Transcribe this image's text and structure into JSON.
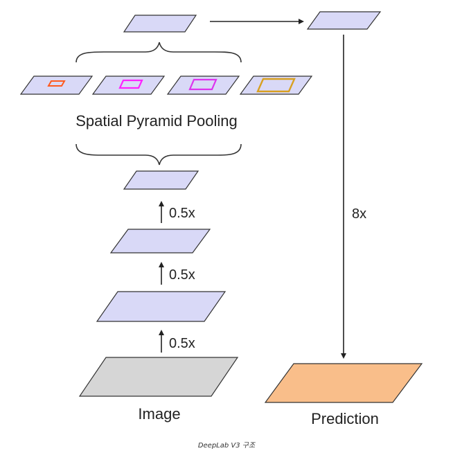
{
  "labels": {
    "spp": "Spatial Pyramid Pooling",
    "image": "Image",
    "prediction": "Prediction",
    "scale_1": "0.5x",
    "scale_2": "0.5x",
    "scale_3": "0.5x",
    "upsample": "8x"
  },
  "caption": "DeepLab V3 구조",
  "colors": {
    "feature_fill": "#d9d9f7",
    "image_fill": "#d6d6d6",
    "prediction_fill": "#f9be8a",
    "stroke": "#333333",
    "pool_1": "#ff5a1e",
    "pool_2": "#ff22ff",
    "pool_3": "#dd33ee",
    "pool_4": "#d8a020"
  }
}
